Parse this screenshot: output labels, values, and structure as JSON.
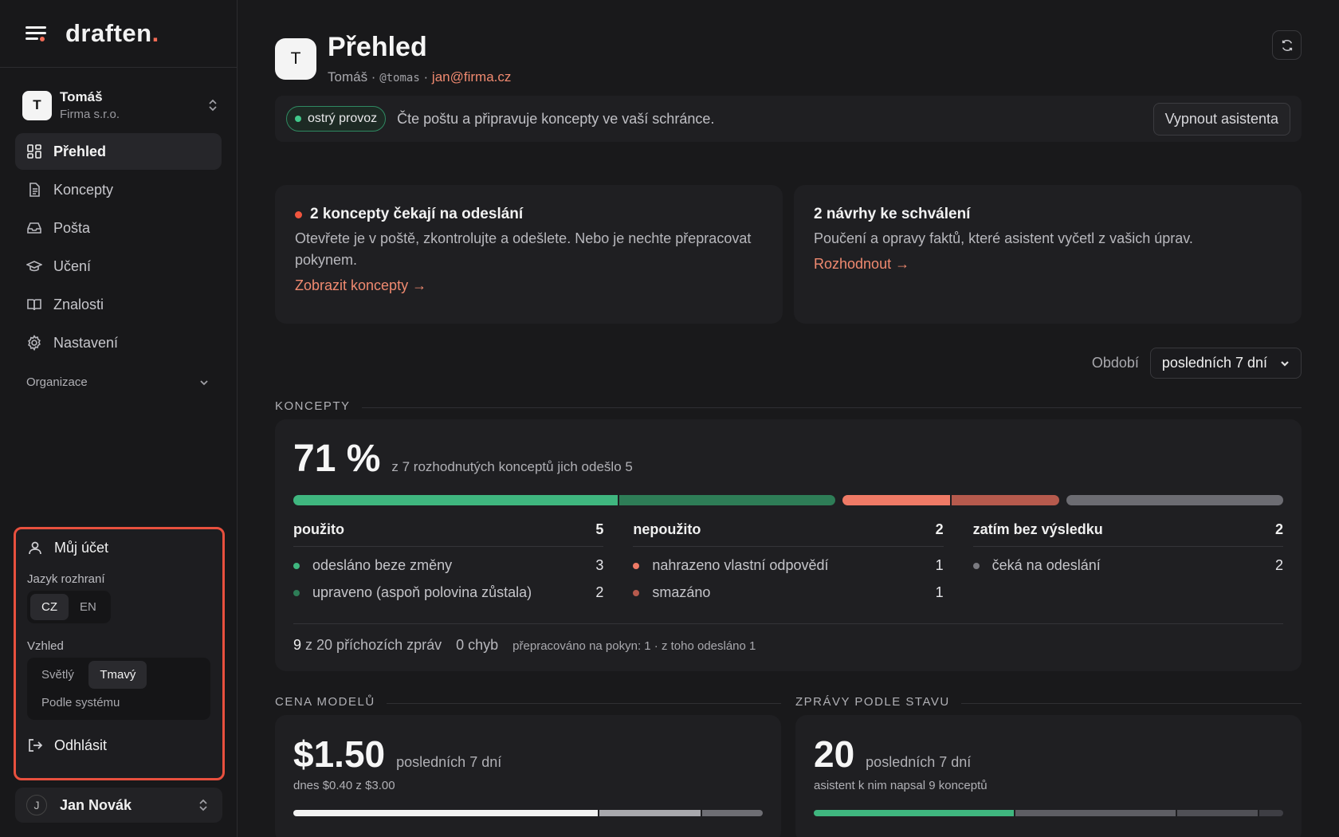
{
  "brand": {
    "name": "draften",
    "dot": "."
  },
  "account": {
    "initial": "T",
    "name": "Tomáš",
    "org": "Firma s.r.o."
  },
  "nav": [
    {
      "label": "Přehled",
      "icon": "dashboard-icon",
      "active": true
    },
    {
      "label": "Koncepty",
      "icon": "document-icon",
      "active": false
    },
    {
      "label": "Pošta",
      "icon": "inbox-icon",
      "active": false
    },
    {
      "label": "Učení",
      "icon": "graduation-cap-icon",
      "active": false
    },
    {
      "label": "Znalosti",
      "icon": "book-icon",
      "active": false
    },
    {
      "label": "Nastavení",
      "icon": "gear-icon",
      "active": false
    }
  ],
  "organization": {
    "label": "Organizace"
  },
  "account_menu": {
    "title": "Můj účet",
    "language_label": "Jazyk rozhraní",
    "languages": [
      "CZ",
      "EN"
    ],
    "language_selected": "CZ",
    "appearance_label": "Vzhled",
    "themes": [
      "Světlý",
      "Tmavý",
      "Podle systému"
    ],
    "theme_selected": "Tmavý",
    "logout": "Odhlásit"
  },
  "user": {
    "initial": "J",
    "name": "Jan Novák"
  },
  "header": {
    "initial": "T",
    "title": "Přehled",
    "name": "Tomáš ·",
    "handle": "@tomas",
    "sep": "·",
    "email": "jan@firma.cz"
  },
  "status": {
    "pill": "ostrý provoz",
    "text": "Čte poštu a připravuje koncepty ve vaší schránce.",
    "button": "Vypnout asistenta"
  },
  "cards": [
    {
      "title": "2 koncepty čekají na odeslání",
      "body": "Otevřete je v poště, zkontrolujte a odešlete. Nebo je nechte přepracovat pokynem.",
      "link": "Zobrazit koncepty →",
      "dot": true
    },
    {
      "title": "2 návrhy ke schválení",
      "body": "Poučení a opravy faktů, které asistent vyčetl z vašich úprav.",
      "link": "Rozhodnout →",
      "dot": false
    }
  ],
  "period": {
    "label": "Období",
    "value": "posledních 7 dní"
  },
  "drafts": {
    "section": "KONCEPTY",
    "pct": "71 %",
    "desc": "z 7 rozhodnutých konceptů jich odešlo 5",
    "bar": [
      {
        "group": [
          {
            "value": 3,
            "color": "#3fb67f"
          },
          {
            "value": 2,
            "color": "#2e7d57"
          }
        ]
      },
      {
        "group": [
          {
            "value": 1,
            "color": "#ef7a66"
          },
          {
            "value": 1,
            "color": "#b65a4d"
          }
        ]
      },
      {
        "group": [
          {
            "value": 2,
            "color": "#6c6c72"
          }
        ]
      }
    ],
    "columns": [
      {
        "label": "použito",
        "count": "5",
        "rows": [
          {
            "label": "odesláno beze změny",
            "count": "3",
            "color": "#3fb67f"
          },
          {
            "label": "upraveno (aspoň polovina zůstala)",
            "count": "2",
            "color": "#2e7d57"
          }
        ]
      },
      {
        "label": "nepoužito",
        "count": "2",
        "rows": [
          {
            "label": "nahrazeno vlastní odpovědí",
            "count": "1",
            "color": "#ef7a66"
          },
          {
            "label": "smazáno",
            "count": "1",
            "color": "#b65a4d"
          }
        ]
      },
      {
        "label": "zatím bez výsledku",
        "count": "2",
        "rows": [
          {
            "label": "čeká na odeslání",
            "count": "2",
            "color": "#7a7a80"
          }
        ]
      }
    ],
    "foot": {
      "incoming_num": "9",
      "incoming_text": "z 20 příchozích zpráv",
      "errors": "0 chyb",
      "rework": "přepracováno na pokyn: 1 · z toho odesláno 1"
    }
  },
  "cost": {
    "section": "CENA MODELŮ",
    "amount": "$1.50",
    "period": "posledních 7 dní",
    "note": "dnes $0.40 z $3.00",
    "bar": [
      {
        "value": 1.5,
        "color": "#f2f2f2"
      },
      {
        "value": 0.5,
        "color": "#a8a8ad"
      },
      {
        "value": 0.3,
        "color": "#6e6e74"
      }
    ]
  },
  "messages": {
    "section": "ZPRÁVY PODLE STAVU",
    "count": "20",
    "period": "posledních 7 dní",
    "note": "asistent k nim napsal 9 konceptů",
    "bar": [
      {
        "value": 5,
        "color": "#3fb67f"
      },
      {
        "value": 4,
        "color": "#5e5e64"
      },
      {
        "value": 2,
        "color": "#505056"
      },
      {
        "value": 0.6,
        "color": "#3e3e44"
      }
    ]
  }
}
